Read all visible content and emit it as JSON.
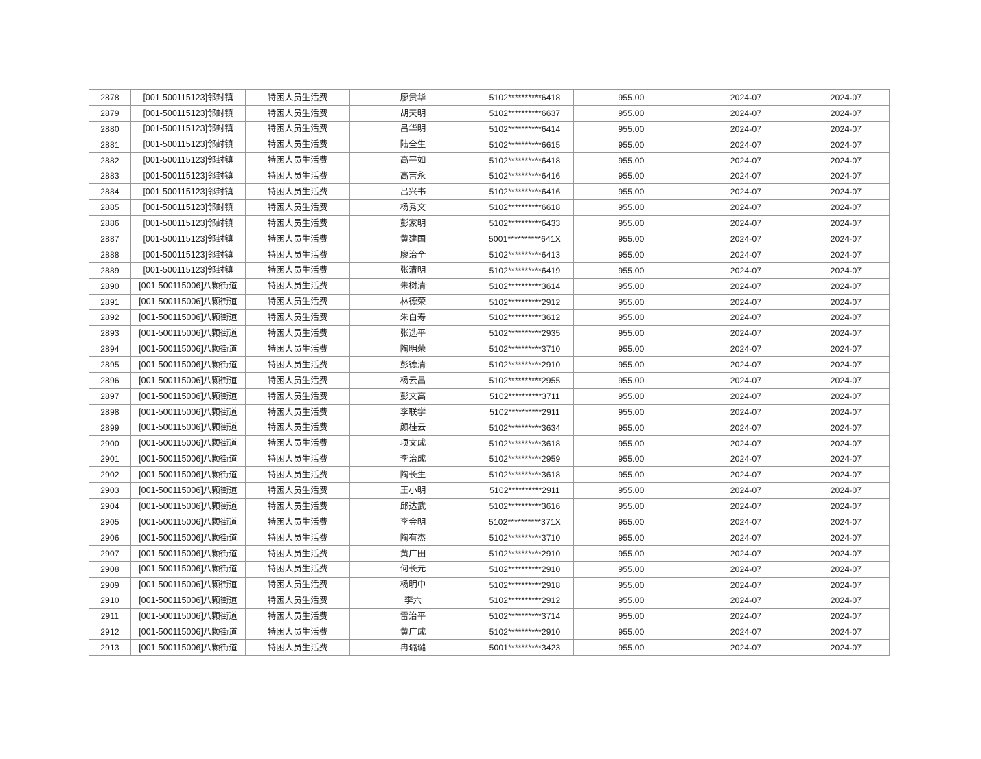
{
  "page": {
    "background_color": "#ffffff",
    "text_color": "#1a1a1a",
    "grid_color": "#979797"
  },
  "table": {
    "rows": [
      [
        "2878",
        "[001-500115123]邻封镇",
        "特困人员生活费",
        "廖贵华",
        "5102**********6418",
        "955.00",
        "2024-07",
        "2024-07"
      ],
      [
        "2879",
        "[001-500115123]邻封镇",
        "特困人员生活费",
        "胡天明",
        "5102**********6637",
        "955.00",
        "2024-07",
        "2024-07"
      ],
      [
        "2880",
        "[001-500115123]邻封镇",
        "特困人员生活费",
        "吕华明",
        "5102**********6414",
        "955.00",
        "2024-07",
        "2024-07"
      ],
      [
        "2881",
        "[001-500115123]邻封镇",
        "特困人员生活费",
        "陆全生",
        "5102**********6615",
        "955.00",
        "2024-07",
        "2024-07"
      ],
      [
        "2882",
        "[001-500115123]邻封镇",
        "特困人员生活费",
        "高平如",
        "5102**********6418",
        "955.00",
        "2024-07",
        "2024-07"
      ],
      [
        "2883",
        "[001-500115123]邻封镇",
        "特困人员生活费",
        "高吉永",
        "5102**********6416",
        "955.00",
        "2024-07",
        "2024-07"
      ],
      [
        "2884",
        "[001-500115123]邻封镇",
        "特困人员生活费",
        "吕兴书",
        "5102**********6416",
        "955.00",
        "2024-07",
        "2024-07"
      ],
      [
        "2885",
        "[001-500115123]邻封镇",
        "特困人员生活费",
        "杨秀文",
        "5102**********6618",
        "955.00",
        "2024-07",
        "2024-07"
      ],
      [
        "2886",
        "[001-500115123]邻封镇",
        "特困人员生活费",
        "彭家明",
        "5102**********6433",
        "955.00",
        "2024-07",
        "2024-07"
      ],
      [
        "2887",
        "[001-500115123]邻封镇",
        "特困人员生活费",
        "黄建国",
        "5001**********641X",
        "955.00",
        "2024-07",
        "2024-07"
      ],
      [
        "2888",
        "[001-500115123]邻封镇",
        "特困人员生活费",
        "廖治全",
        "5102**********6413",
        "955.00",
        "2024-07",
        "2024-07"
      ],
      [
        "2889",
        "[001-500115123]邻封镇",
        "特困人员生活费",
        "张清明",
        "5102**********6419",
        "955.00",
        "2024-07",
        "2024-07"
      ],
      [
        "2890",
        "[001-500115006]八颗街道",
        "特困人员生活费",
        "朱树清",
        "5102**********3614",
        "955.00",
        "2024-07",
        "2024-07"
      ],
      [
        "2891",
        "[001-500115006]八颗街道",
        "特困人员生活费",
        "林德荣",
        "5102**********2912",
        "955.00",
        "2024-07",
        "2024-07"
      ],
      [
        "2892",
        "[001-500115006]八颗街道",
        "特困人员生活费",
        "朱白寿",
        "5102**********3612",
        "955.00",
        "2024-07",
        "2024-07"
      ],
      [
        "2893",
        "[001-500115006]八颗街道",
        "特困人员生活费",
        "张选平",
        "5102**********2935",
        "955.00",
        "2024-07",
        "2024-07"
      ],
      [
        "2894",
        "[001-500115006]八颗街道",
        "特困人员生活费",
        "陶明荣",
        "5102**********3710",
        "955.00",
        "2024-07",
        "2024-07"
      ],
      [
        "2895",
        "[001-500115006]八颗街道",
        "特困人员生活费",
        "彭德清",
        "5102**********2910",
        "955.00",
        "2024-07",
        "2024-07"
      ],
      [
        "2896",
        "[001-500115006]八颗街道",
        "特困人员生活费",
        "杨云昌",
        "5102**********2955",
        "955.00",
        "2024-07",
        "2024-07"
      ],
      [
        "2897",
        "[001-500115006]八颗街道",
        "特困人员生活费",
        "彭文高",
        "5102**********3711",
        "955.00",
        "2024-07",
        "2024-07"
      ],
      [
        "2898",
        "[001-500115006]八颗街道",
        "特困人员生活费",
        "李联学",
        "5102**********2911",
        "955.00",
        "2024-07",
        "2024-07"
      ],
      [
        "2899",
        "[001-500115006]八颗街道",
        "特困人员生活费",
        "颜桂云",
        "5102**********3634",
        "955.00",
        "2024-07",
        "2024-07"
      ],
      [
        "2900",
        "[001-500115006]八颗街道",
        "特困人员生活费",
        "项文成",
        "5102**********3618",
        "955.00",
        "2024-07",
        "2024-07"
      ],
      [
        "2901",
        "[001-500115006]八颗街道",
        "特困人员生活费",
        "李治成",
        "5102**********2959",
        "955.00",
        "2024-07",
        "2024-07"
      ],
      [
        "2902",
        "[001-500115006]八颗街道",
        "特困人员生活费",
        "陶长生",
        "5102**********3618",
        "955.00",
        "2024-07",
        "2024-07"
      ],
      [
        "2903",
        "[001-500115006]八颗街道",
        "特困人员生活费",
        "王小明",
        "5102**********2911",
        "955.00",
        "2024-07",
        "2024-07"
      ],
      [
        "2904",
        "[001-500115006]八颗街道",
        "特困人员生活费",
        "邱达武",
        "5102**********3616",
        "955.00",
        "2024-07",
        "2024-07"
      ],
      [
        "2905",
        "[001-500115006]八颗街道",
        "特困人员生活费",
        "李金明",
        "5102**********371X",
        "955.00",
        "2024-07",
        "2024-07"
      ],
      [
        "2906",
        "[001-500115006]八颗街道",
        "特困人员生活费",
        "陶有杰",
        "5102**********3710",
        "955.00",
        "2024-07",
        "2024-07"
      ],
      [
        "2907",
        "[001-500115006]八颗街道",
        "特困人员生活费",
        "黄广田",
        "5102**********2910",
        "955.00",
        "2024-07",
        "2024-07"
      ],
      [
        "2908",
        "[001-500115006]八颗街道",
        "特困人员生活费",
        "何长元",
        "5102**********2910",
        "955.00",
        "2024-07",
        "2024-07"
      ],
      [
        "2909",
        "[001-500115006]八颗街道",
        "特困人员生活费",
        "杨明中",
        "5102**********2918",
        "955.00",
        "2024-07",
        "2024-07"
      ],
      [
        "2910",
        "[001-500115006]八颗街道",
        "特困人员生活费",
        "李六",
        "5102**********2912",
        "955.00",
        "2024-07",
        "2024-07"
      ],
      [
        "2911",
        "[001-500115006]八颗街道",
        "特困人员生活费",
        "雷治平",
        "5102**********3714",
        "955.00",
        "2024-07",
        "2024-07"
      ],
      [
        "2912",
        "[001-500115006]八颗街道",
        "特困人员生活费",
        "黄广成",
        "5102**********2910",
        "955.00",
        "2024-07",
        "2024-07"
      ],
      [
        "2913",
        "[001-500115006]八颗街道",
        "特困人员生活费",
        "冉璐璐",
        "5001**********3423",
        "955.00",
        "2024-07",
        "2024-07"
      ]
    ]
  }
}
